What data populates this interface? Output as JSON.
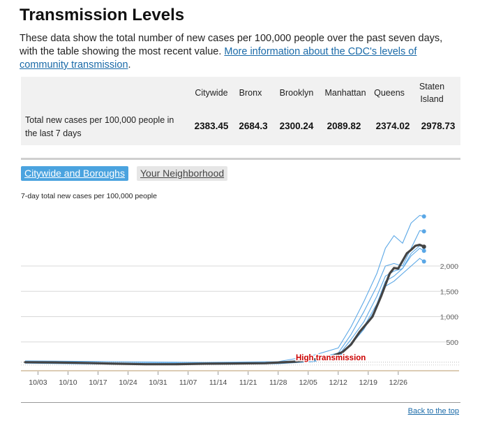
{
  "page": {
    "title": "Transmission Levels",
    "intro_text": "These data show the total number of new cases per 100,000 people over the past seven days, with the table showing the most recent value. ",
    "intro_link": "More information about the CDC's levels of community transmission",
    "intro_end": "."
  },
  "table": {
    "headers": [
      "Citywide",
      "Bronx",
      "Brooklyn",
      "Manhattan",
      "Queens",
      "Staten Island"
    ],
    "row_label": "Total new cases per 100,000 people in the last 7 days",
    "values": [
      "2383.45",
      "2684.3",
      "2300.24",
      "2089.82",
      "2374.02",
      "2978.73"
    ]
  },
  "tabs": {
    "active": "Citywide and Boroughs",
    "inactive": "Your Neighborhood"
  },
  "chart_data": {
    "type": "line",
    "title": "",
    "subtitle": "7-day total new cases per 100,000 people",
    "x_tick_labels": [
      "10/03",
      "10/10",
      "10/17",
      "10/24",
      "10/31",
      "11/07",
      "11/14",
      "11/21",
      "11/28",
      "12/05",
      "12/12",
      "12/19",
      "12/26"
    ],
    "x_range": [
      "2021-09-30",
      "2022-01-03"
    ],
    "y_ticks": [
      500,
      1000,
      1500,
      2000
    ],
    "y_tick_labels": [
      "500",
      "1,000",
      "1,500",
      "2,000"
    ],
    "ylim": [
      0,
      2800
    ],
    "grid": true,
    "threshold": {
      "value": 100,
      "label": "High transmission",
      "color": "#cc0000"
    },
    "colors": {
      "citywide": "#444444",
      "borough": "#5aa7e6"
    },
    "citywide": {
      "x": [
        "2021-09-30",
        "2021-10-07",
        "2021-10-14",
        "2021-10-21",
        "2021-10-28",
        "2021-11-04",
        "2021-11-11",
        "2021-11-18",
        "2021-11-25",
        "2021-12-02",
        "2021-12-06",
        "2021-12-10",
        "2021-12-13",
        "2021-12-15",
        "2021-12-17",
        "2021-12-19",
        "2021-12-20",
        "2021-12-22",
        "2021-12-24",
        "2021-12-25",
        "2021-12-26",
        "2021-12-28",
        "2021-12-29",
        "2021-12-30",
        "2021-12-31",
        "2022-01-01"
      ],
      "y": [
        100,
        95,
        85,
        70,
        60,
        60,
        70,
        75,
        80,
        110,
        150,
        200,
        300,
        450,
        700,
        900,
        1000,
        1400,
        1850,
        1960,
        1950,
        2250,
        2320,
        2400,
        2420,
        2383
      ]
    },
    "boroughs": [
      {
        "x": [
          "2021-09-30",
          "2021-10-21",
          "2021-11-11",
          "2021-11-28",
          "2021-12-06",
          "2021-12-12",
          "2021-12-15",
          "2021-12-18",
          "2021-12-21",
          "2021-12-23",
          "2021-12-25",
          "2021-12-27",
          "2021-12-29",
          "2021-12-31",
          "2022-01-01"
        ],
        "y": [
          125,
          110,
          95,
          110,
          230,
          380,
          800,
          1300,
          1850,
          2350,
          2600,
          2450,
          2850,
          3000,
          2979
        ]
      },
      {
        "x": [
          "2021-09-30",
          "2021-10-21",
          "2021-11-11",
          "2021-11-28",
          "2021-12-06",
          "2021-12-12",
          "2021-12-15",
          "2021-12-18",
          "2021-12-21",
          "2021-12-23",
          "2021-12-25",
          "2021-12-27",
          "2021-12-29",
          "2021-12-31",
          "2022-01-01"
        ],
        "y": [
          110,
          85,
          80,
          100,
          160,
          280,
          650,
          1100,
          1600,
          2000,
          2050,
          2000,
          2350,
          2700,
          2684
        ]
      },
      {
        "x": [
          "2021-09-30",
          "2021-10-21",
          "2021-11-11",
          "2021-11-28",
          "2021-12-06",
          "2021-12-12",
          "2021-12-15",
          "2021-12-18",
          "2021-12-21",
          "2021-12-23",
          "2021-12-25",
          "2021-12-27",
          "2021-12-29",
          "2021-12-31",
          "2022-01-01"
        ],
        "y": [
          95,
          75,
          65,
          85,
          130,
          230,
          550,
          900,
          1400,
          1800,
          1900,
          1950,
          2250,
          2400,
          2374
        ]
      },
      {
        "x": [
          "2021-09-30",
          "2021-10-21",
          "2021-11-11",
          "2021-11-28",
          "2021-12-06",
          "2021-12-12",
          "2021-12-15",
          "2021-12-18",
          "2021-12-21",
          "2021-12-23",
          "2021-12-25",
          "2021-12-27",
          "2021-12-29",
          "2021-12-31",
          "2022-01-01"
        ],
        "y": [
          85,
          65,
          60,
          75,
          120,
          200,
          480,
          800,
          1250,
          1700,
          1800,
          1950,
          2200,
          2350,
          2300
        ]
      },
      {
        "x": [
          "2021-09-30",
          "2021-10-21",
          "2021-11-11",
          "2021-11-28",
          "2021-12-06",
          "2021-12-12",
          "2021-12-15",
          "2021-12-18",
          "2021-12-21",
          "2021-12-23",
          "2021-12-25",
          "2021-12-27",
          "2021-12-29",
          "2021-12-31",
          "2022-01-01"
        ],
        "y": [
          80,
          60,
          55,
          70,
          110,
          190,
          450,
          750,
          1200,
          1600,
          1700,
          1850,
          2000,
          2150,
          2090
        ]
      }
    ]
  },
  "footer": {
    "back_link": "Back to the top"
  }
}
